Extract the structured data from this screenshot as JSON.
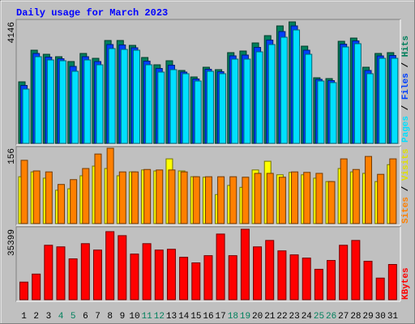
{
  "title": "Daily usage for March 2023",
  "chart_data": [
    {
      "type": "bar",
      "ylim": [
        0,
        4146
      ],
      "yticks": [
        4146
      ],
      "series": [
        {
          "name": "Hits",
          "color": "#00805c",
          "values": [
            2100,
            3179,
            3040,
            2957,
            2792,
            3068,
            2902,
            3510,
            3510,
            3344,
            2930,
            2681,
            2819,
            2488,
            2266,
            2598,
            2515,
            3096,
            3151,
            3427,
            3676,
            4008,
            4146,
            3317,
            2239,
            2211,
            3483,
            3593,
            2598,
            3068,
            3096
          ]
        },
        {
          "name": "Files",
          "color": "#0040ff",
          "values": [
            1976,
            3068,
            2944,
            2888,
            2626,
            2958,
            2792,
            3372,
            3358,
            3262,
            2806,
            2556,
            2667,
            2432,
            2197,
            2529,
            2446,
            2986,
            3013,
            3275,
            3524,
            3815,
            4008,
            3179,
            2184,
            2142,
            3386,
            3497,
            2488,
            2985,
            2999
          ]
        },
        {
          "name": "Pages",
          "color": "#00e0ff",
          "values": [
            1852,
            2957,
            2847,
            2819,
            2460,
            2847,
            2681,
            3234,
            3206,
            3179,
            2681,
            2432,
            2515,
            2377,
            2128,
            2460,
            2377,
            2875,
            2875,
            3123,
            3372,
            3621,
            3870,
            3040,
            2128,
            2073,
            3289,
            3400,
            2377,
            2902,
            2902
          ]
        }
      ]
    },
    {
      "type": "bar",
      "ylim": [
        0,
        156
      ],
      "yticks": [
        156
      ],
      "series": [
        {
          "name": "Visits",
          "color": "#ffff00",
          "values": [
            97,
            107,
            94,
            69,
            72,
            99,
            119,
            114,
            99,
            107,
            111,
            109,
            134,
            109,
            97,
            96,
            60,
            79,
            75,
            111,
            129,
            101,
            106,
            101,
            94,
            87,
            114,
            107,
            104,
            87,
            122
          ]
        },
        {
          "name": "Sites",
          "color": "#ff8000",
          "values": [
            131,
            109,
            107,
            81,
            91,
            114,
            144,
            156,
            107,
            107,
            112,
            111,
            111,
            107,
            97,
            97,
            97,
            97,
            96,
            104,
            104,
            96,
            107,
            106,
            104,
            87,
            134,
            112,
            139,
            102,
            134
          ]
        }
      ]
    },
    {
      "type": "bar",
      "ylim": [
        0,
        35399
      ],
      "yticks": [
        35399
      ],
      "categories": [
        "1",
        "2",
        "3",
        "4",
        "5",
        "6",
        "7",
        "8",
        "9",
        "10",
        "11",
        "12",
        "13",
        "14",
        "15",
        "16",
        "17",
        "18",
        "19",
        "20",
        "21",
        "22",
        "23",
        "24",
        "25",
        "26",
        "27",
        "28",
        "29",
        "30",
        "31"
      ],
      "category_colors": [
        "#000000",
        "#000000",
        "#000000",
        "#00805c",
        "#00805c",
        "#000000",
        "#000000",
        "#000000",
        "#000000",
        "#000000",
        "#00805c",
        "#00805c",
        "#000000",
        "#000000",
        "#000000",
        "#000000",
        "#000000",
        "#00805c",
        "#00805c",
        "#000000",
        "#000000",
        "#000000",
        "#000000",
        "#000000",
        "#00805c",
        "#00805c",
        "#000000",
        "#000000",
        "#000000",
        "#000000",
        "#000000"
      ],
      "series": [
        {
          "name": "KBytes",
          "color": "#ff0000",
          "values": [
            8849,
            12872,
            27354,
            26549,
            20515,
            28158,
            24940,
            34192,
            32181,
            22929,
            28158,
            24940,
            25342,
            21320,
            18504,
            22124,
            32985,
            22124,
            35399,
            26549,
            29767,
            24538,
            22527,
            20917,
            15286,
            19711,
            27354,
            29767,
            19308,
            10861,
            17700
          ]
        }
      ]
    }
  ]
}
